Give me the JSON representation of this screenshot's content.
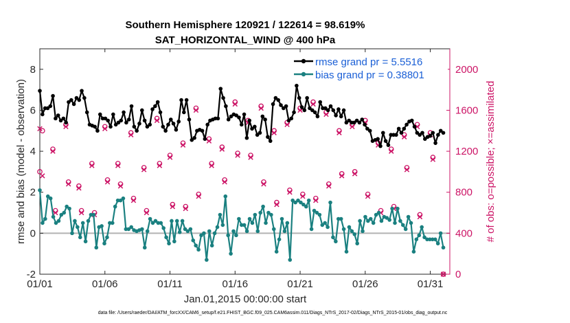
{
  "chart_data": {
    "type": "line",
    "title_line1": "Southern Hemisphere 120921 / 122614 = 98.619%",
    "title_line2": "SAT_HORIZONTAL_WIND @ 400 hPa",
    "xlabel": "Jan.01,2015 00:00:00 start",
    "ylabel_left": "rmse and bias (model - observation)",
    "ylabel_right": "# of obs: o=possible; ×=assimilated",
    "xlim": [
      0,
      31.5
    ],
    "ylim_left": [
      -2,
      9
    ],
    "ylim_right": [
      0,
      2200
    ],
    "x_ticks": [
      0,
      5,
      10,
      15,
      20,
      25,
      30
    ],
    "x_tick_labels": [
      "01/01",
      "01/06",
      "01/11",
      "01/16",
      "01/21",
      "01/26",
      "01/31"
    ],
    "y_ticks_left": [
      -2,
      0,
      2,
      4,
      6,
      8
    ],
    "y_tick_labels_left": [
      "-2",
      "0",
      "2",
      "4",
      "6",
      "8"
    ],
    "y_ticks_right": [
      0,
      400,
      800,
      1200,
      1600,
      2000
    ],
    "y_tick_labels_right": [
      "0",
      "400",
      "800",
      "1200",
      "1600",
      "2000"
    ],
    "legend_position": "top-right",
    "zero_line": 0,
    "footnote": "data file: /Users/raeder/DAI/ATM_forcXX/CAM6_setup/f.e21.FHIST_BGC.f09_025.CAM6assim.011/Diags_NTrS_2017-02/Diags_NTrS_2015-01/obs_diag_output.nc",
    "colors": {
      "rmse": "#000000",
      "bias": "#1a8080",
      "counts": "#cc1466",
      "zero": "#b3b3b3",
      "legend_text": "#1a5fd6"
    },
    "series": [
      {
        "name": "rmse grand pr = 5.5516",
        "values": [
          6.95,
          5.8,
          6.1,
          6.1,
          6.2,
          6.7,
          5.6,
          5.75,
          5.5,
          5.6,
          5.4,
          6.4,
          6.5,
          6.3,
          6.6,
          6.5,
          6.95,
          6.6,
          5.9,
          5.3,
          5.25,
          5.2,
          5.0,
          5.8,
          5.6,
          5.6,
          5.5,
          5.2,
          5.8,
          5.3,
          5.4,
          5.5,
          5.9,
          5.4,
          5.55,
          6.2,
          5.2,
          5.0,
          5.35,
          6.0,
          5.5,
          5.2,
          5.3,
          6.05,
          6.2,
          6.4,
          5.9,
          5.2,
          5.0,
          5.3,
          5.55,
          5.35,
          5.05,
          5.45,
          6.5,
          5.9,
          6.5,
          5.55,
          4.55,
          4.65,
          5.0,
          5.05,
          5.0,
          4.6,
          5.3,
          5.5,
          5.55,
          5.6,
          5.6,
          7.05,
          6.6,
          6.2,
          5.55,
          5.7,
          5.8,
          5.75,
          5.65,
          5.3,
          5.8,
          4.65,
          5.5,
          5.1,
          5.2,
          4.8,
          4.9,
          5.7,
          5.55,
          4.7,
          4.5,
          6.3,
          6.6,
          6.5,
          6.25,
          6.1,
          6.2,
          5.5,
          5.6,
          5.9,
          7.2,
          6.6,
          6.15,
          6.0,
          6.6,
          6.1,
          6.0,
          5.9,
          5.7,
          6.4,
          6.1,
          6.1,
          6.0,
          6.2,
          6.0,
          5.75,
          6.05,
          5.7,
          6.0,
          5.4,
          5.5,
          5.4,
          5.4,
          5.5,
          5.4,
          5.55,
          5.3,
          5.1,
          5.0,
          4.5,
          4.55,
          4.6,
          4.25,
          4.9,
          4.5,
          4.3,
          4.8,
          4.8,
          4.8,
          5.1,
          4.9,
          5.1,
          5.3,
          5.45,
          5.5,
          5.2,
          4.9,
          4.8,
          4.9,
          4.6,
          4.7,
          4.75,
          4.9,
          4.4,
          4.8,
          5.0,
          4.9
        ]
      },
      {
        "name": "bias grand pr = 0.38801",
        "values": [
          2.1,
          0.5,
          0.7,
          1.8,
          1.7,
          0.8,
          0.5,
          0.6,
          0.9,
          1.0,
          1.3,
          1.2,
          0.0,
          0.6,
          0.3,
          -0.2,
          0.5,
          -0.4,
          0.6,
          0.9,
          0.9,
          -0.7,
          0.3,
          0.35,
          -0.5,
          -0.2,
          0.5,
          0.5,
          1.3,
          1.6,
          1.6,
          1.7,
          0.2,
          0.2,
          0.3,
          0.15,
          0.1,
          0.15,
          0.2,
          -0.7,
          0.1,
          0.7,
          0.5,
          0.6,
          0.5,
          0.5,
          0.25,
          -0.2,
          -0.5,
          0.6,
          -0.4,
          0.6,
          0.05,
          0.6,
          0.2,
          0.1,
          0.2,
          -0.35,
          -0.6,
          -0.8,
          -0.1,
          0.0,
          -1.3,
          0.1,
          -0.6,
          0.0,
          0.3,
          0.9,
          0.4,
          1.8,
          -0.1,
          -1.0,
          0.1,
          -0.1,
          0.7,
          0.4,
          0.4,
          0.1,
          0.7,
          0.5,
          0.9,
          0.1,
          1.0,
          1.3,
          0.5,
          1.0,
          0.9,
          0.2,
          -0.9,
          -0.3,
          0.7,
          0.1,
          0.5,
          -1.3,
          1.6,
          1.5,
          1.6,
          1.5,
          1.4,
          1.3,
          1.6,
          0.2,
          1.1,
          1.0,
          0.9,
          0.4,
          0.5,
          0.3,
          1.5,
          -0.2,
          -0.4,
          0.7,
          0.7,
          0.2,
          -0.9,
          0.3,
          0.1,
          -0.05,
          -0.5,
          0.6,
          0.1,
          0.8,
          0.6,
          0.7,
          0.5,
          0.9,
          1.0,
          0.6,
          0.8,
          0.75,
          0.65,
          1.2,
          0.5,
          1.2,
          0.6,
          0.4,
          0.2,
          0.8,
          0.5,
          -0.9,
          -0.3,
          -0.1,
          0.3,
          -0.2,
          -0.3,
          -0.3,
          -0.3,
          -0.3,
          -0.5,
          0.0,
          -0.7
        ]
      }
    ],
    "counts_possible": {
      "name": "possible",
      "x": [
        0.0,
        0.2,
        1.0,
        1.2,
        2.0,
        2.2,
        3.0,
        3.2,
        4.0,
        4.2,
        5.0,
        5.2,
        6.0,
        6.2,
        7.0,
        7.2,
        8.0,
        8.2,
        9.0,
        9.2,
        10.0,
        10.2,
        11.0,
        11.2,
        12.0,
        12.2,
        13.0,
        13.2,
        14.0,
        14.2,
        15.0,
        15.2,
        16.0,
        16.2,
        17.0,
        17.2,
        18.0,
        18.2,
        19.0,
        19.2,
        20.0,
        20.2,
        21.0,
        21.2,
        22.0,
        22.2,
        23.0,
        23.2,
        24.0,
        24.2,
        25.0,
        25.2,
        26.0,
        26.2,
        27.0,
        27.2,
        28.0,
        28.2,
        29.0,
        29.2,
        30.0,
        30.2,
        31.0
      ],
      "values": [
        1000,
        1400,
        1220,
        620,
        1460,
        900,
        860,
        620,
        1080,
        600,
        1440,
        920,
        1080,
        880,
        1380,
        740,
        1040,
        620,
        1520,
        1080,
        1160,
        680,
        1280,
        660,
        1620,
        780,
        1320,
        1080,
        1240,
        920,
        1680,
        1180,
        1500,
        1160,
        1640,
        900,
        1400,
        700,
        1480,
        820,
        1620,
        780,
        1680,
        740,
        1580,
        880,
        1400,
        980,
        1460,
        1000,
        1500,
        780,
        1280,
        620,
        1220,
        660,
        1360,
        1040,
        1460,
        580,
        1380,
        1140,
        0
      ]
    },
    "counts_assimilated": {
      "name": "assimilated",
      "values": [
        1420,
        960,
        1200,
        600,
        1440,
        880,
        840,
        600,
        1060,
        580,
        1420,
        900,
        1060,
        860,
        1360,
        720,
        1020,
        600,
        1500,
        1060,
        1140,
        660,
        1260,
        640,
        1600,
        760,
        1300,
        1060,
        1220,
        900,
        1660,
        1160,
        1480,
        1140,
        1620,
        880,
        1380,
        680,
        1460,
        800,
        1600,
        760,
        1660,
        720,
        1560,
        860,
        1380,
        960,
        1440,
        980,
        1480,
        760,
        1260,
        600,
        1200,
        640,
        1340,
        1020,
        1440,
        560,
        1360,
        1120,
        0
      ]
    }
  }
}
